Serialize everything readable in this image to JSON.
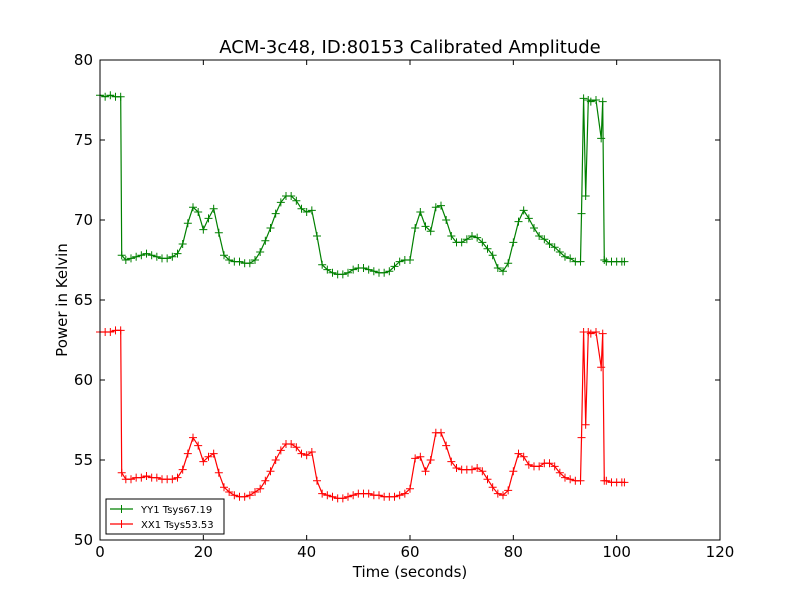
{
  "chart_data": {
    "type": "line",
    "title": "ACM-3c48, ID:80153 Calibrated Amplitude",
    "xlabel": "Time (seconds)",
    "ylabel": "Power in Kelvin",
    "xlim": [
      0,
      120
    ],
    "ylim": [
      50,
      80
    ],
    "xticks": [
      "0",
      "20",
      "40",
      "60",
      "80",
      "100",
      "120"
    ],
    "yticks": [
      "50",
      "55",
      "60",
      "65",
      "70",
      "75",
      "80"
    ],
    "grid": false,
    "legend_position": "lower-left",
    "marker": "+",
    "series": [
      {
        "name": "YY1 Tsys67.19",
        "color": "#008000",
        "points": [
          [
            0,
            77.8
          ],
          [
            1,
            77.7
          ],
          [
            2,
            77.8
          ],
          [
            3,
            77.7
          ],
          [
            4,
            77.7
          ],
          [
            4.2,
            67.8
          ],
          [
            5,
            67.5
          ],
          [
            6,
            67.6
          ],
          [
            7,
            67.7
          ],
          [
            8,
            67.8
          ],
          [
            9,
            67.9
          ],
          [
            10,
            67.8
          ],
          [
            11,
            67.7
          ],
          [
            12,
            67.6
          ],
          [
            13,
            67.6
          ],
          [
            14,
            67.7
          ],
          [
            15,
            67.9
          ],
          [
            16,
            68.5
          ],
          [
            17,
            69.8
          ],
          [
            18,
            70.8
          ],
          [
            19,
            70.5
          ],
          [
            20,
            69.4
          ],
          [
            21,
            70.1
          ],
          [
            22,
            70.7
          ],
          [
            23,
            69.2
          ],
          [
            24,
            67.8
          ],
          [
            25,
            67.5
          ],
          [
            26,
            67.4
          ],
          [
            27,
            67.4
          ],
          [
            28,
            67.3
          ],
          [
            29,
            67.3
          ],
          [
            30,
            67.5
          ],
          [
            31,
            68.0
          ],
          [
            32,
            68.7
          ],
          [
            33,
            69.5
          ],
          [
            34,
            70.4
          ],
          [
            35,
            71.1
          ],
          [
            36,
            71.5
          ],
          [
            37,
            71.5
          ],
          [
            38,
            71.2
          ],
          [
            39,
            70.7
          ],
          [
            40,
            70.5
          ],
          [
            41,
            70.6
          ],
          [
            42,
            69.0
          ],
          [
            43,
            67.2
          ],
          [
            44,
            66.9
          ],
          [
            45,
            66.7
          ],
          [
            46,
            66.6
          ],
          [
            47,
            66.6
          ],
          [
            48,
            66.7
          ],
          [
            49,
            66.9
          ],
          [
            50,
            67.0
          ],
          [
            51,
            67.0
          ],
          [
            52,
            66.9
          ],
          [
            53,
            66.8
          ],
          [
            54,
            66.7
          ],
          [
            55,
            66.7
          ],
          [
            56,
            66.8
          ],
          [
            57,
            67.1
          ],
          [
            58,
            67.4
          ],
          [
            59,
            67.5
          ],
          [
            60,
            67.5
          ],
          [
            61,
            69.5
          ],
          [
            62,
            70.5
          ],
          [
            63,
            69.6
          ],
          [
            64,
            69.3
          ],
          [
            65,
            70.8
          ],
          [
            66,
            70.9
          ],
          [
            67,
            70.0
          ],
          [
            68,
            69.0
          ],
          [
            69,
            68.6
          ],
          [
            70,
            68.6
          ],
          [
            71,
            68.8
          ],
          [
            72,
            69.0
          ],
          [
            73,
            68.9
          ],
          [
            74,
            68.6
          ],
          [
            75,
            68.2
          ],
          [
            76,
            67.8
          ],
          [
            77,
            67.0
          ],
          [
            78,
            66.8
          ],
          [
            79,
            67.3
          ],
          [
            80,
            68.6
          ],
          [
            81,
            69.9
          ],
          [
            82,
            70.6
          ],
          [
            83,
            70.1
          ],
          [
            84,
            69.5
          ],
          [
            85,
            69.0
          ],
          [
            86,
            68.8
          ],
          [
            87,
            68.5
          ],
          [
            88,
            68.3
          ],
          [
            89,
            68.0
          ],
          [
            90,
            67.7
          ],
          [
            91,
            67.6
          ],
          [
            92,
            67.4
          ],
          [
            93,
            67.4
          ],
          [
            93.2,
            70.4
          ],
          [
            93.6,
            77.6
          ],
          [
            94,
            71.5
          ],
          [
            94.5,
            77.5
          ],
          [
            95,
            77.4
          ],
          [
            96,
            77.5
          ],
          [
            97,
            75.1
          ],
          [
            97.3,
            77.4
          ],
          [
            97.6,
            67.5
          ],
          [
            98,
            67.4
          ],
          [
            99,
            67.4
          ],
          [
            100,
            67.4
          ],
          [
            101,
            67.4
          ],
          [
            101.5,
            67.4
          ]
        ]
      },
      {
        "name": "XX1 Tsys53.53",
        "color": "#ff0000",
        "points": [
          [
            0,
            63.0
          ],
          [
            1,
            63.0
          ],
          [
            2,
            63.0
          ],
          [
            3,
            63.1
          ],
          [
            4,
            63.1
          ],
          [
            4.2,
            54.2
          ],
          [
            5,
            53.8
          ],
          [
            6,
            53.8
          ],
          [
            7,
            53.9
          ],
          [
            8,
            53.9
          ],
          [
            9,
            54.0
          ],
          [
            10,
            53.9
          ],
          [
            11,
            53.9
          ],
          [
            12,
            53.8
          ],
          [
            13,
            53.8
          ],
          [
            14,
            53.8
          ],
          [
            15,
            53.9
          ],
          [
            16,
            54.4
          ],
          [
            17,
            55.4
          ],
          [
            18,
            56.4
          ],
          [
            19,
            55.9
          ],
          [
            20,
            54.9
          ],
          [
            21,
            55.2
          ],
          [
            22,
            55.4
          ],
          [
            23,
            54.2
          ],
          [
            24,
            53.3
          ],
          [
            25,
            53.0
          ],
          [
            26,
            52.8
          ],
          [
            27,
            52.7
          ],
          [
            28,
            52.7
          ],
          [
            29,
            52.8
          ],
          [
            30,
            53.0
          ],
          [
            31,
            53.2
          ],
          [
            32,
            53.7
          ],
          [
            33,
            54.3
          ],
          [
            34,
            55.0
          ],
          [
            35,
            55.6
          ],
          [
            36,
            56.0
          ],
          [
            37,
            56.0
          ],
          [
            38,
            55.8
          ],
          [
            39,
            55.4
          ],
          [
            40,
            55.3
          ],
          [
            41,
            55.5
          ],
          [
            42,
            53.7
          ],
          [
            43,
            52.9
          ],
          [
            44,
            52.8
          ],
          [
            45,
            52.7
          ],
          [
            46,
            52.6
          ],
          [
            47,
            52.6
          ],
          [
            48,
            52.7
          ],
          [
            49,
            52.8
          ],
          [
            50,
            52.9
          ],
          [
            51,
            52.9
          ],
          [
            52,
            52.9
          ],
          [
            53,
            52.8
          ],
          [
            54,
            52.8
          ],
          [
            55,
            52.7
          ],
          [
            56,
            52.7
          ],
          [
            57,
            52.7
          ],
          [
            58,
            52.8
          ],
          [
            59,
            52.9
          ],
          [
            60,
            53.2
          ],
          [
            61,
            55.1
          ],
          [
            62,
            55.2
          ],
          [
            63,
            54.3
          ],
          [
            64,
            55.0
          ],
          [
            65,
            56.7
          ],
          [
            66,
            56.7
          ],
          [
            67,
            55.9
          ],
          [
            68,
            54.9
          ],
          [
            69,
            54.5
          ],
          [
            70,
            54.4
          ],
          [
            71,
            54.4
          ],
          [
            72,
            54.4
          ],
          [
            73,
            54.5
          ],
          [
            74,
            54.3
          ],
          [
            75,
            53.8
          ],
          [
            76,
            53.3
          ],
          [
            77,
            52.9
          ],
          [
            78,
            52.8
          ],
          [
            79,
            53.1
          ],
          [
            80,
            54.3
          ],
          [
            81,
            55.4
          ],
          [
            82,
            55.2
          ],
          [
            83,
            54.7
          ],
          [
            84,
            54.6
          ],
          [
            85,
            54.6
          ],
          [
            86,
            54.8
          ],
          [
            87,
            54.8
          ],
          [
            88,
            54.6
          ],
          [
            89,
            54.2
          ],
          [
            90,
            53.9
          ],
          [
            91,
            53.8
          ],
          [
            92,
            53.7
          ],
          [
            93,
            53.7
          ],
          [
            93.2,
            56.4
          ],
          [
            93.6,
            63.0
          ],
          [
            94,
            57.2
          ],
          [
            94.5,
            63.0
          ],
          [
            95,
            62.9
          ],
          [
            96,
            63.0
          ],
          [
            97,
            60.8
          ],
          [
            97.3,
            62.9
          ],
          [
            97.6,
            53.7
          ],
          [
            98,
            53.7
          ],
          [
            99,
            53.6
          ],
          [
            100,
            53.6
          ],
          [
            101,
            53.6
          ],
          [
            101.5,
            53.6
          ]
        ]
      }
    ]
  }
}
